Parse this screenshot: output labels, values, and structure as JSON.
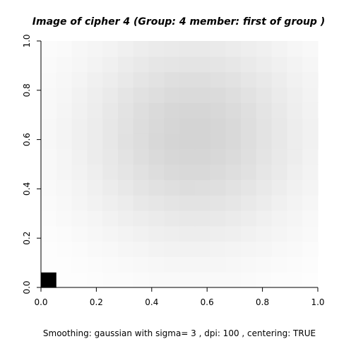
{
  "chart_data": {
    "type": "heatmap",
    "title": "Image of cipher  4 (Group:  4  member:  first of group )",
    "subtitle": "Smoothing:  gaussian with sigma= 3 , dpi: 100 , centering: TRUE",
    "xlabel": "",
    "ylabel": "",
    "xlim": [
      0.0,
      1.0
    ],
    "ylim": [
      0.0,
      1.0
    ],
    "x_ticks": [
      0.0,
      0.2,
      0.4,
      0.6,
      0.8,
      1.0
    ],
    "y_ticks": [
      0.0,
      0.2,
      0.4,
      0.6,
      0.8,
      1.0
    ],
    "x_tick_labels": [
      "0.0",
      "0.2",
      "0.4",
      "0.6",
      "0.8",
      "1.0"
    ],
    "y_tick_labels": [
      "0.0",
      "0.2",
      "0.4",
      "0.6",
      "0.8",
      "1.0"
    ],
    "grid": false,
    "colors": {
      "low": "#ffffff",
      "high": "#000000"
    },
    "grid_size": [
      18,
      16
    ],
    "peak": {
      "x": 0.55,
      "y": 0.62,
      "intensity": 0.17
    },
    "spread": {
      "x": 0.28,
      "y": 0.3
    },
    "corner_cell": {
      "x": 0.0,
      "y": 0.0,
      "intensity": 1.0
    }
  }
}
